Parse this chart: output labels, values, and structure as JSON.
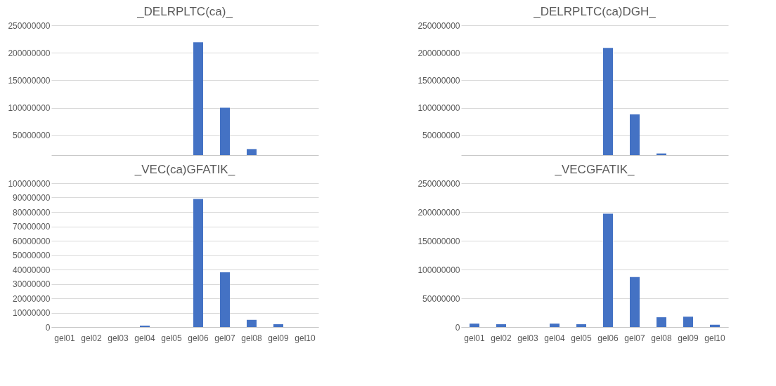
{
  "chart_data": [
    {
      "type": "bar",
      "title": "_DELRPLTC(ca)_",
      "categories": [
        null,
        null,
        null,
        null,
        null,
        null,
        null,
        null,
        null,
        null
      ],
      "values": [
        null,
        null,
        null,
        null,
        null,
        219000000,
        100000000,
        25000000,
        null,
        null
      ],
      "color": "#4472c4",
      "ylim": [
        14000000,
        250000000
      ],
      "yticks": [
        50000000,
        100000000,
        150000000,
        200000000,
        250000000
      ],
      "grid": "y",
      "tick_labels": "y"
    },
    {
      "type": "bar",
      "title": "_DELRPLTC(ca)DGH_",
      "categories": [
        null,
        null,
        null,
        null,
        null,
        null,
        null,
        null,
        null,
        null
      ],
      "values": [
        null,
        null,
        null,
        null,
        null,
        209000000,
        88000000,
        17000000,
        null,
        null
      ],
      "color": "#4472c4",
      "ylim": [
        14000000,
        250000000
      ],
      "yticks": [
        50000000,
        100000000,
        150000000,
        200000000,
        250000000
      ],
      "grid": "y",
      "tick_labels": "y"
    },
    {
      "type": "bar",
      "title": "_VEC(ca)GFATIK_",
      "categories": [
        "gel01",
        "gel02",
        "gel03",
        "gel04",
        "gel05",
        "gel06",
        "gel07",
        "gel08",
        "gel09",
        "gel10"
      ],
      "values": [
        0,
        0,
        0,
        1000000,
        0,
        89000000,
        38000000,
        5000000,
        2000000,
        0
      ],
      "color": "#4472c4",
      "ylim": [
        0,
        100000000
      ],
      "yticks": [
        0,
        10000000,
        20000000,
        30000000,
        40000000,
        50000000,
        60000000,
        70000000,
        80000000,
        90000000,
        100000000
      ],
      "grid": "y"
    },
    {
      "type": "bar",
      "title": "_VECGFATIK_",
      "categories": [
        "gel01",
        "gel02",
        "gel03",
        "gel04",
        "gel05",
        "gel06",
        "gel07",
        "gel08",
        "gel09",
        "gel10"
      ],
      "values": [
        6000000,
        5000000,
        0,
        6000000,
        5000000,
        197000000,
        87000000,
        17000000,
        18000000,
        4000000
      ],
      "color": "#4472c4",
      "ylim": [
        0,
        250000000
      ],
      "yticks": [
        0,
        50000000,
        100000000,
        150000000,
        200000000,
        250000000
      ],
      "grid": "y"
    }
  ]
}
